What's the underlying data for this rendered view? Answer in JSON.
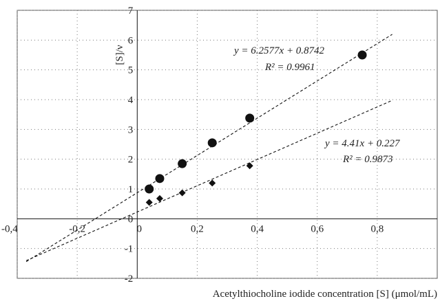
{
  "chart_data": {
    "type": "scatter",
    "xlim": [
      -0.4,
      1.0
    ],
    "ylim": [
      -2,
      7
    ],
    "x_ticks": [
      -0.4,
      -0.2,
      0,
      0.2,
      0.4,
      0.6,
      0.8
    ],
    "x_tick_labels": [
      "-0,4",
      "-0,2",
      "0",
      "0,2",
      "0,4",
      "0,6",
      "0,8"
    ],
    "y_ticks": [
      -2,
      -1,
      0,
      1,
      2,
      3,
      4,
      5,
      6,
      7
    ],
    "y_tick_labels": [
      "-2",
      "-1",
      "0",
      "1",
      "2",
      "3",
      "4",
      "5",
      "6",
      "7"
    ],
    "xlabel": "Acetylthiocholine iodide concentration [S] (μmol/mL)",
    "ylabel": "[S]/ν",
    "grid": "dotted",
    "series": [
      {
        "marker": "circle",
        "x": [
          0.04,
          0.075,
          0.15,
          0.25,
          0.375,
          0.75
        ],
        "y": [
          1.0,
          1.35,
          1.85,
          2.55,
          3.38,
          5.5
        ],
        "fit": {
          "slope": 6.2577,
          "intercept": 0.8742,
          "x_range": [
            -0.37,
            0.85
          ]
        },
        "equation": "y = 6.2577x + 0.8742",
        "r2": "R² = 0.9961"
      },
      {
        "marker": "diamond",
        "x": [
          0.04,
          0.075,
          0.15,
          0.25,
          0.375
        ],
        "y": [
          0.55,
          0.68,
          0.87,
          1.2,
          1.78
        ],
        "fit": {
          "slope": 4.41,
          "intercept": 0.227,
          "x_range": [
            -0.37,
            0.85
          ]
        },
        "equation": "y = 4.41x + 0.227",
        "r2": "R² = 0.9873"
      }
    ]
  }
}
